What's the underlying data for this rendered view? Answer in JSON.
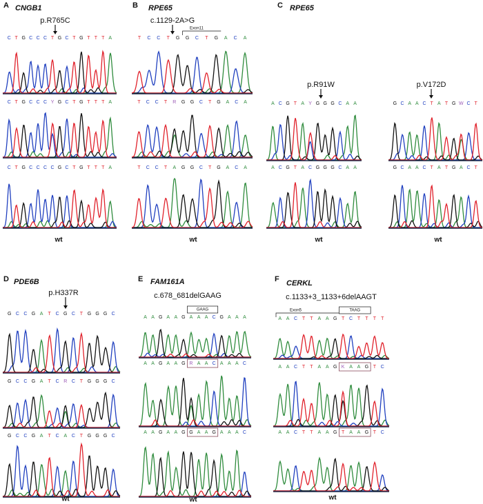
{
  "panels": [
    {
      "label": "A",
      "gene": "CNGB1",
      "groups": [
        {
          "mutation": "p.R765C",
          "sequences": [
            "CTGCCCTGCTGTTTA",
            "CTGCCCYGCTGTTTA",
            "CTGCCCCGCTGTTTA"
          ],
          "wt": "wt"
        }
      ]
    },
    {
      "label": "B",
      "gene": "RPE65",
      "groups": [
        {
          "mutation": "c.1129-2A>G",
          "note": "Exon11",
          "sequences": [
            "TCCTGGCTGACA",
            "TCCTRGGCTGACA",
            "TCCTAGGCTGACA"
          ],
          "wt": "wt"
        }
      ]
    },
    {
      "label": "C",
      "gene": "RPE65",
      "groups": [
        {
          "mutation": "p.R91W",
          "sequences": [
            "ACGTAYGGGCAA",
            "ACGTACGGGCAA"
          ],
          "wt": "wt"
        },
        {
          "mutation": "p.V172D",
          "sequences": [
            "GCAACTATGWCT",
            "GCAACTATGACT"
          ],
          "wt": "wt"
        }
      ]
    },
    {
      "label": "D",
      "gene": "PDE6B",
      "groups": [
        {
          "mutation": "p.H337R",
          "sequences": [
            "GCCGATCGCTGGGC",
            "GCCGATCRCTGGGC",
            "GCCGATCACTGGGC"
          ],
          "wt": "wt"
        }
      ]
    },
    {
      "label": "E",
      "gene": "FAM161A",
      "groups": [
        {
          "mutation": "c.678_681delGAAG",
          "note": "GAAG",
          "sequences": [
            "AAGAAGAAACGAAA",
            "AAGAAGRAACAAAC",
            "AAGAAGGAAGAAAC"
          ],
          "wt": "wt"
        }
      ]
    },
    {
      "label": "F",
      "gene": "CERKL",
      "groups": [
        {
          "mutation": "c.1133+3_1133+6delAAGT",
          "note": "Exon5",
          "box_note": "TAAG",
          "sequences": [
            "AACTTAAGTCTTTT",
            "AACTTAAGKAAGTC",
            "AACTTAAGTAAGTC"
          ],
          "wt": "wt"
        }
      ]
    }
  ]
}
